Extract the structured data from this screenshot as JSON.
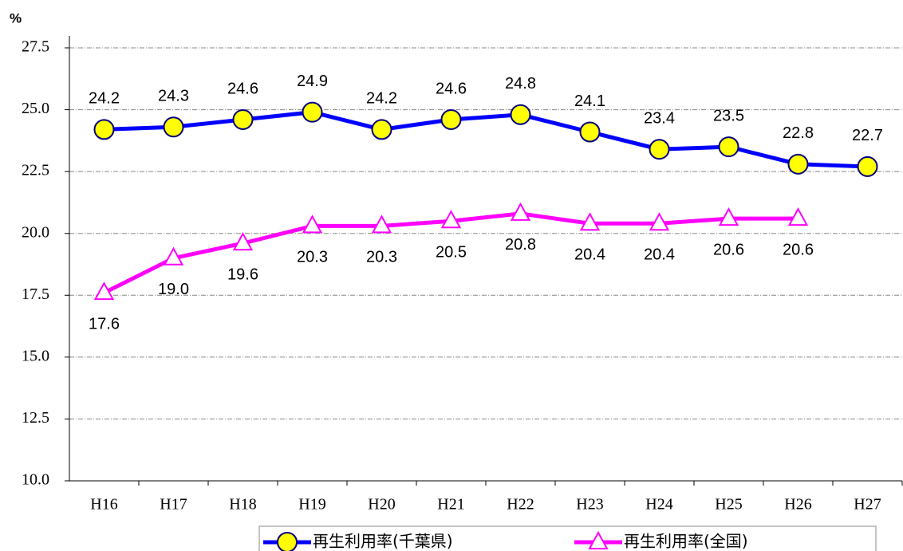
{
  "chart_data": {
    "type": "line",
    "y_label": "%",
    "categories": [
      "H16",
      "H17",
      "H18",
      "H19",
      "H20",
      "H21",
      "H22",
      "H23",
      "H24",
      "H25",
      "H26",
      "H27"
    ],
    "series": [
      {
        "name": "再生利用率(千葉県)",
        "color": "#0000ff",
        "marker": "circle",
        "marker_color": "#ffff00",
        "values": [
          24.2,
          24.3,
          24.6,
          24.9,
          24.2,
          24.6,
          24.8,
          24.1,
          23.4,
          23.5,
          22.8,
          22.7
        ]
      },
      {
        "name": "再生利用率(全国)",
        "color": "#ff00ff",
        "marker": "triangle",
        "marker_color": "#ffffff",
        "values": [
          17.6,
          19.0,
          19.6,
          20.3,
          20.3,
          20.5,
          20.8,
          20.4,
          20.4,
          20.6,
          20.6,
          null
        ],
        "value_labels": [
          "17.6",
          "19.0",
          "19.6",
          "20.3",
          "20.3",
          "20.5",
          "20.8",
          "20.4",
          "20.4",
          "20.6",
          "20.6",
          null
        ]
      }
    ],
    "ylim": [
      10,
      27.5
    ],
    "yticks": [
      {
        "value": 10,
        "label": "10.0"
      },
      12.5,
      {
        "value": 15,
        "label": "15.0"
      },
      17.5,
      {
        "value": 20,
        "label": "20.0"
      },
      22.5,
      {
        "value": 25,
        "label": "25.0"
      },
      27.5
    ],
    "grid": true,
    "legend": "bottom"
  }
}
